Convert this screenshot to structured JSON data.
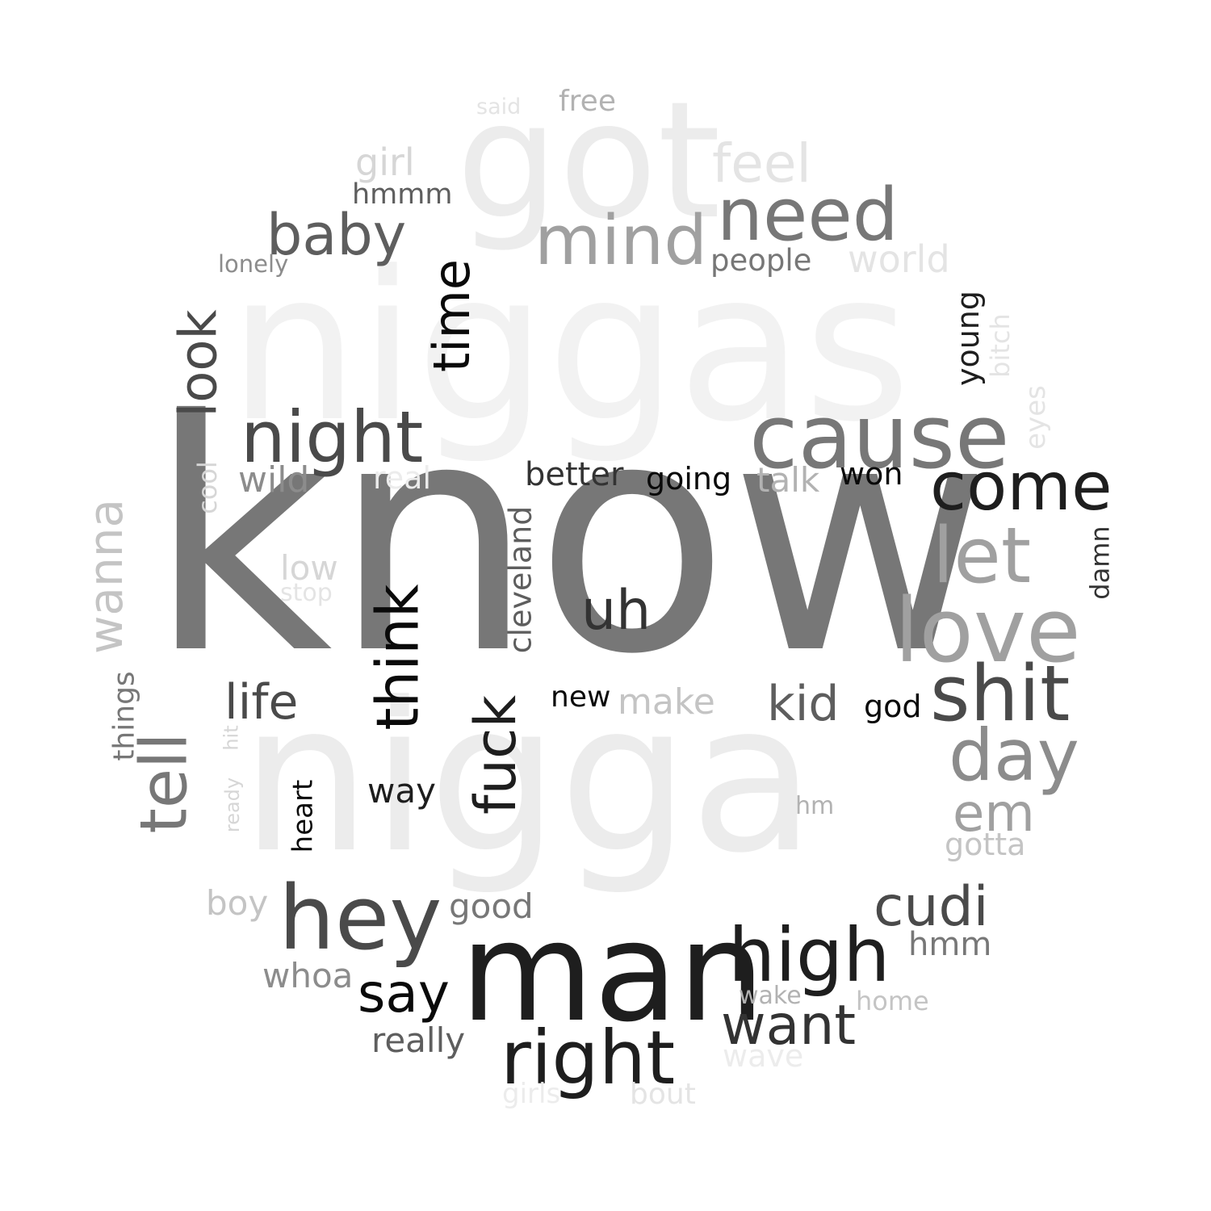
{
  "words": {
    "niggas": "niggas",
    "nigga": "nigga",
    "got": "got",
    "know": "know",
    "man": "man",
    "cause": "cause",
    "come": "come",
    "love": "love",
    "shit": "shit",
    "let": "let",
    "day": "day",
    "need": "need",
    "mind": "mind",
    "night": "night",
    "hey": "hey",
    "high": "high",
    "right": "right",
    "want": "want",
    "baby": "baby",
    "cudi": "cudi",
    "uh": "uh",
    "em": "em",
    "kid": "kid",
    "say": "say",
    "life": "life",
    "think": "think",
    "fuck": "fuck",
    "time": "time",
    "look": "look",
    "tell": "tell",
    "wanna": "wanna",
    "feel": "feel",
    "girl": "girl",
    "free": "free",
    "said": "said",
    "hmmm": "hmmm",
    "lonely": "lonely",
    "people": "people",
    "world": "world",
    "young": "young",
    "bitch": "bitch",
    "eyes": "eyes",
    "better": "better",
    "going": "going",
    "talk": "talk",
    "won": "won",
    "wild": "wild",
    "real": "real",
    "cool": "cool",
    "low": "low",
    "stop": "stop",
    "cleveland": "cleveland",
    "damn": "damn",
    "new": "new",
    "make": "make",
    "god": "god",
    "things": "things",
    "hit": "hit",
    "ready": "ready",
    "heart": "heart",
    "way": "way",
    "hm": "hm",
    "gotta": "gotta",
    "boy": "boy",
    "good": "good",
    "whoa": "whoa",
    "hmm": "hmm",
    "wake": "wake",
    "home": "home",
    "really": "really",
    "wave": "wave",
    "girls": "girls",
    "bout": "bout"
  }
}
